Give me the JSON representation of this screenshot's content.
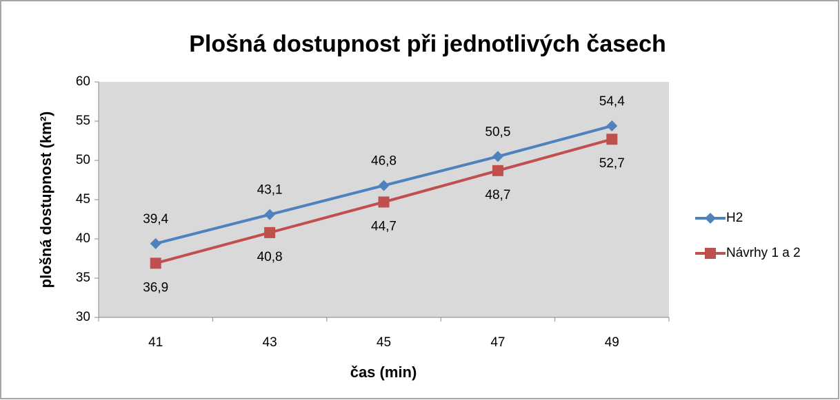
{
  "chart_data": {
    "type": "line",
    "title": "Plošná dostupnost při jednotlivých časech",
    "x_label": "čas (min)",
    "y_label": "plošná dostupnost (km²)",
    "categories": [
      "41",
      "43",
      "45",
      "47",
      "49"
    ],
    "series": [
      {
        "name": "H2",
        "color": "#4f81bd",
        "marker": "diamond",
        "values": [
          39.4,
          43.1,
          46.8,
          50.5,
          54.4
        ],
        "value_labels": [
          "39,4",
          "43,1",
          "46,8",
          "50,5",
          "54,4"
        ]
      },
      {
        "name": "Návrhy 1 a 2",
        "color": "#c0504d",
        "marker": "square",
        "values": [
          36.9,
          40.8,
          44.7,
          48.7,
          52.7
        ],
        "value_labels": [
          "36,9",
          "40,8",
          "44,7",
          "48,7",
          "52,7"
        ]
      }
    ],
    "ylim": [
      30,
      60
    ],
    "yticks": [
      30,
      35,
      40,
      45,
      50,
      55,
      60
    ],
    "legend": "right",
    "plot_background": "#d9d9d9"
  }
}
